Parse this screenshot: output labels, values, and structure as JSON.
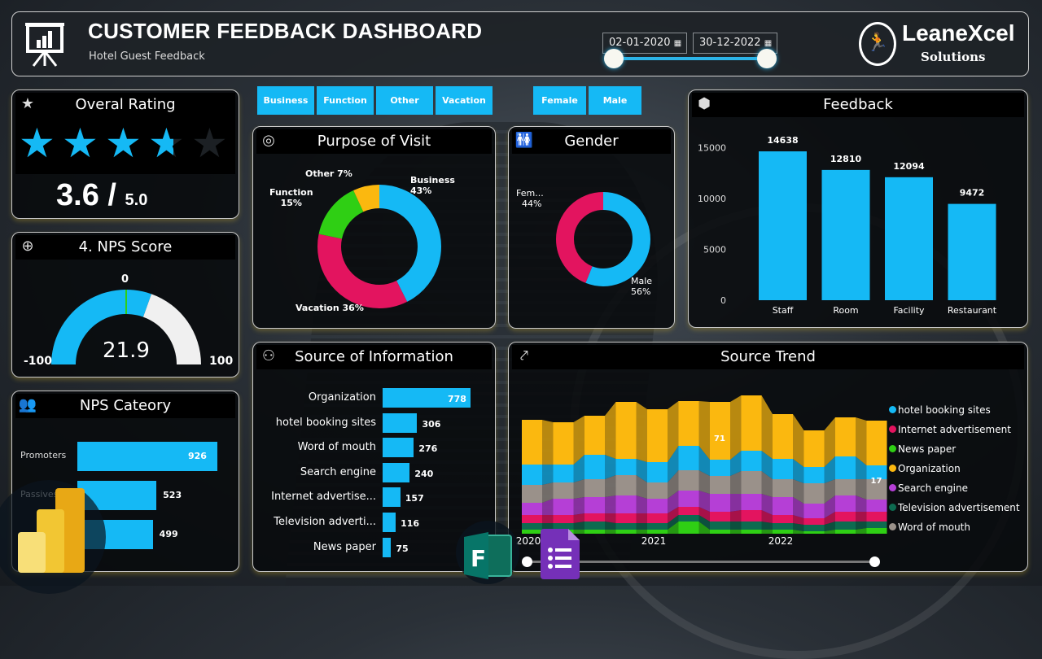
{
  "header": {
    "title": "CUSTOMER FEEDBACK DASHBOARD",
    "subtitle": "Hotel Guest Feedback",
    "date_from": "02-01-2020",
    "date_to": "30-12-2022",
    "logo_text": "LeaneXcel",
    "logo_sub": "Solutions"
  },
  "slicers": {
    "purpose": [
      "Business",
      "Function",
      "Other",
      "Vacation"
    ],
    "gender": [
      "Female",
      "Male"
    ]
  },
  "rating": {
    "title": "Overal Rating",
    "value": "3.6",
    "slash": "/",
    "max": "5.0",
    "stars_filled": 3.6,
    "stars_total": 5
  },
  "nps": {
    "title": "4. NPS Score",
    "value": "21.9",
    "min": "-100",
    "max": "100",
    "zero_label": "0",
    "value_num": 21.9
  },
  "nps_category": {
    "title": "NPS Cateory",
    "labels": [
      "Promoters",
      "Passives",
      ""
    ],
    "values": [
      926,
      523,
      499
    ],
    "value_labels": [
      "926",
      "523",
      "499"
    ]
  },
  "colors": {
    "blue": "#15b9f5",
    "pink": "#e3145f",
    "green": "#2fcf14",
    "orange": "#fbb80f",
    "purple": "#b53fd6",
    "teal": "#0d6b50",
    "gray": "#9a918a"
  },
  "chart_data": [
    {
      "type": "pie",
      "title": "Purpose of Visit",
      "categories": [
        "Business",
        "Vacation",
        "Function",
        "Other"
      ],
      "values": [
        43,
        36,
        15,
        7
      ],
      "labels": [
        "Business 43%",
        "Vacation 36%",
        "Function 15%",
        "Other 7%"
      ],
      "colors": [
        "#15b9f5",
        "#e3145f",
        "#2fcf14",
        "#fbb80f"
      ]
    },
    {
      "type": "pie",
      "title": "Gender",
      "categories": [
        "Male",
        "Female"
      ],
      "values": [
        56,
        44
      ],
      "labels": [
        "Male",
        "56%",
        "Fem...",
        "44%"
      ],
      "colors": [
        "#15b9f5",
        "#e3145f"
      ]
    },
    {
      "type": "bar",
      "title": "Feedback",
      "categories": [
        "Staff",
        "Room",
        "Facility",
        "Restaurant"
      ],
      "values": [
        14638,
        12810,
        12094,
        9472
      ],
      "value_labels": [
        "14638",
        "12810",
        "12094",
        "9472"
      ],
      "ylim": [
        0,
        15000
      ],
      "yticks": [
        "0",
        "5000",
        "10000",
        "15000"
      ]
    },
    {
      "type": "bar",
      "orientation": "horizontal",
      "title": "Source of Information",
      "categories": [
        "Organization",
        "hotel booking sites",
        "Word of mouth",
        "Search engine",
        "Internet advertise...",
        "Television adverti...",
        "News paper"
      ],
      "values": [
        778,
        306,
        276,
        240,
        157,
        116,
        75
      ],
      "value_labels": [
        "778",
        "306",
        "276",
        "240",
        "157",
        "116",
        "75"
      ]
    },
    {
      "type": "area",
      "subtype": "ribbon",
      "title": "Source Trend",
      "x_ticks": [
        "2020",
        "2021",
        "2022"
      ],
      "legend": [
        "hotel booking sites",
        "Internet advertisement",
        "News paper",
        "Organization",
        "Search engine",
        "Television advertisement",
        "Word of mouth"
      ],
      "legend_colors": [
        "#15b9f5",
        "#e3145f",
        "#2fcf14",
        "#fbb80f",
        "#b53fd6",
        "#0d6b50",
        "#9a918a"
      ],
      "series": [
        {
          "name": "News paper",
          "color": "#2fcf14",
          "values": [
            5,
            5,
            5,
            5,
            5,
            15,
            5,
            5,
            5,
            3,
            5,
            7
          ]
        },
        {
          "name": "Television advertisement",
          "color": "#0d6b50",
          "values": [
            8,
            8,
            10,
            8,
            8,
            8,
            10,
            10,
            8,
            8,
            10,
            8
          ]
        },
        {
          "name": "Internet advertisement",
          "color": "#e3145f",
          "values": [
            10,
            10,
            10,
            12,
            12,
            10,
            12,
            14,
            10,
            8,
            12,
            12
          ]
        },
        {
          "name": "Search engine",
          "color": "#b53fd6",
          "values": [
            15,
            20,
            20,
            22,
            18,
            20,
            22,
            20,
            22,
            18,
            20,
            15
          ]
        },
        {
          "name": "Word of mouth",
          "color": "#9a918a",
          "values": [
            22,
            20,
            22,
            25,
            20,
            25,
            22,
            28,
            22,
            25,
            20,
            25
          ]
        },
        {
          "name": "hotel booking sites",
          "color": "#15b9f5",
          "values": [
            25,
            22,
            30,
            20,
            25,
            30,
            20,
            25,
            25,
            20,
            28,
            17
          ]
        },
        {
          "name": "Organization",
          "color": "#fbb80f",
          "values": [
            55,
            52,
            48,
            70,
            65,
            55,
            71,
            68,
            55,
            45,
            48,
            55
          ]
        }
      ],
      "data_labels": [
        "71",
        "17"
      ]
    }
  ]
}
